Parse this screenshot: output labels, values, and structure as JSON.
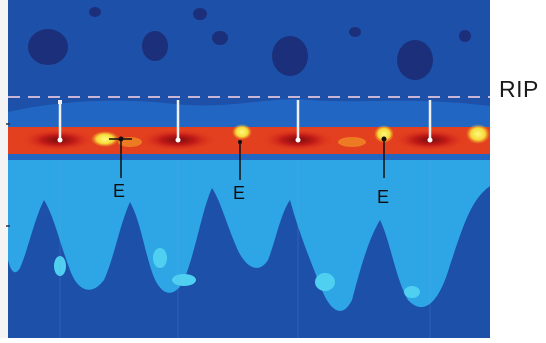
{
  "figure": {
    "side_label": "RIP",
    "event_label": "E",
    "colors": {
      "background_blue": "#1d50a8",
      "dark_blue": "#1e3a8a",
      "light_blue": "#2ea6e6",
      "cyan": "#4fd0f0",
      "band_red": "#d9271c",
      "band_dark_red": "#8a1010",
      "band_orange": "#f08a24",
      "band_yellow": "#f7e93a",
      "dashed_line": "#c9b6d6"
    }
  }
}
